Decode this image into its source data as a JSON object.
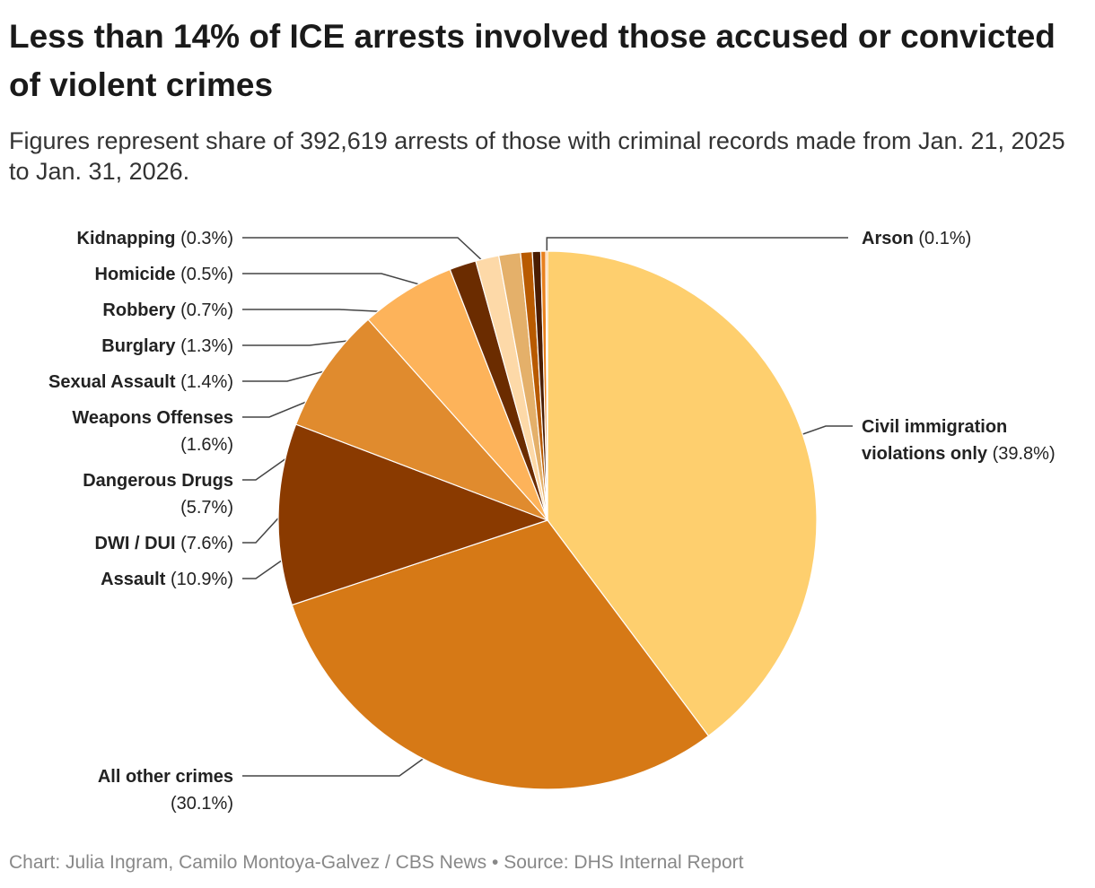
{
  "title": "Less than 14% of ICE arrests involved those accused or convicted of violent crimes",
  "subtitle": "Figures represent share of 392,619 arrests of those with criminal records made from Jan. 21, 2025 to Jan. 31, 2026.",
  "credit": "Chart: Julia Ingram, Camilo Montoya-Galvez / CBS News  •  Source: DHS Internal Report",
  "chart_data": {
    "type": "pie",
    "start": "top, clockwise",
    "slices": [
      {
        "label": "Civil immigration violations only",
        "value": 39.8,
        "color": "#FECF6E"
      },
      {
        "label": "All other crimes",
        "value": 30.1,
        "color": "#D67916"
      },
      {
        "label": "Assault",
        "value": 10.9,
        "color": "#8A3A00"
      },
      {
        "label": "DWI / DUI",
        "value": 7.6,
        "color": "#E08B2E"
      },
      {
        "label": "Dangerous Drugs",
        "value": 5.7,
        "color": "#FDB35A"
      },
      {
        "label": "Weapons Offenses",
        "value": 1.6,
        "color": "#6B2C00"
      },
      {
        "label": "Sexual Assault",
        "value": 1.4,
        "color": "#FDD9A8"
      },
      {
        "label": "Burglary",
        "value": 1.3,
        "color": "#E4B06A"
      },
      {
        "label": "Robbery",
        "value": 0.7,
        "color": "#B85A00"
      },
      {
        "label": "Homicide",
        "value": 0.5,
        "color": "#4A1C00"
      },
      {
        "label": "Kidnapping",
        "value": 0.3,
        "color": "#E8811E"
      },
      {
        "label": "Arson",
        "value": 0.1,
        "color": "#FCA040"
      }
    ]
  }
}
